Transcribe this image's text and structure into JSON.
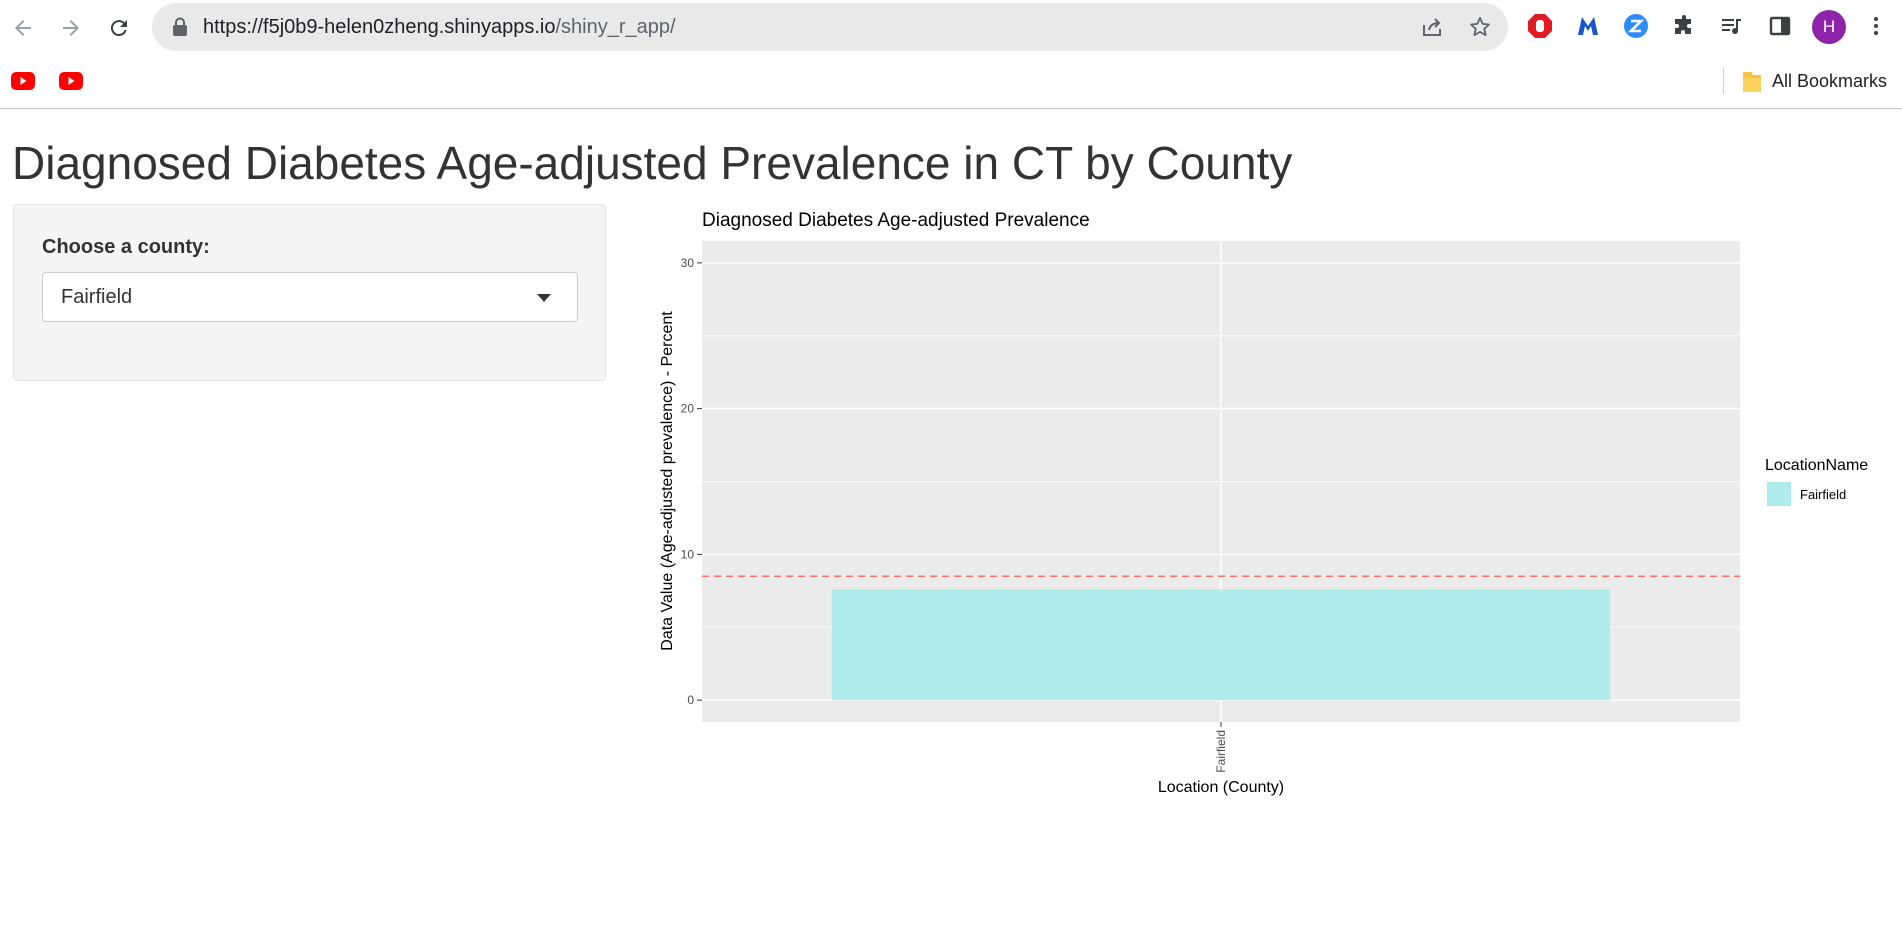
{
  "browser": {
    "url_host": "https://f5j0b9-helen0zheng.shinyapps.io",
    "url_path": "/shiny_r_app/",
    "profile_initial": "H",
    "bookmarks_label": "All Bookmarks",
    "colors": {
      "omnibox": "#e9e9ea",
      "avatar": "#8e24aa",
      "youtube": "#ff0000"
    }
  },
  "app": {
    "title": "Diagnosed Diabetes Age-adjusted Prevalence in CT by County",
    "select_label": "Choose a county:",
    "select_value": "Fairfield"
  },
  "chart_data": {
    "type": "bar",
    "title": "Diagnosed Diabetes Age-adjusted Prevalence",
    "xlabel": "Location (County)",
    "ylabel": "Data Value (Age-adjusted prevalence) - Percent",
    "categories": [
      "Fairfield"
    ],
    "values": [
      7.6
    ],
    "ylim": [
      -1.5,
      31.5
    ],
    "yticks": [
      0,
      10,
      20,
      30
    ],
    "reference_line": {
      "value": 8.5,
      "style": "dashed",
      "color": "#f8766d"
    },
    "bar_color": "#b0ecec",
    "panel_background": "#ebebeb",
    "grid": true,
    "legend": {
      "title": "LocationName",
      "entries": [
        "Fairfield"
      ],
      "placement": "right"
    }
  }
}
